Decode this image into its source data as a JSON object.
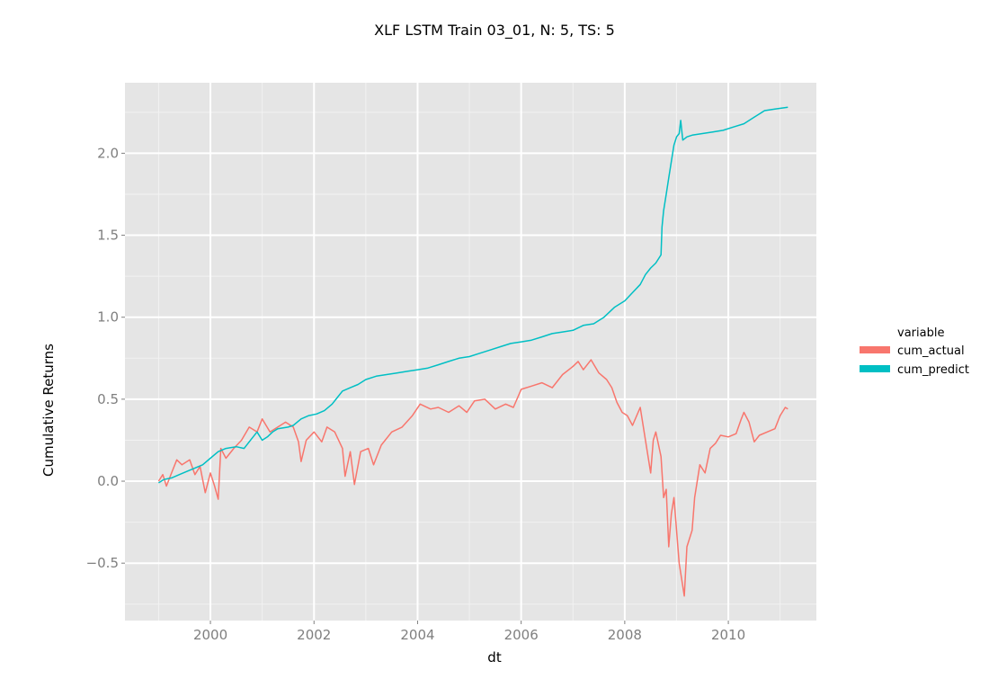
{
  "chart_data": {
    "type": "line",
    "title": "XLF LSTM Train 03_01, N: 5, TS: 5",
    "xlabel": "dt",
    "ylabel": "Cumulative Returns",
    "xlim": [
      1998.35,
      2011.7
    ],
    "ylim": [
      -0.85,
      2.43
    ],
    "x_ticks": [
      2000,
      2002,
      2004,
      2006,
      2008,
      2010
    ],
    "x_tick_labels": [
      "2000",
      "2002",
      "2004",
      "2006",
      "2008",
      "2010"
    ],
    "y_ticks": [
      -0.5,
      0.0,
      0.5,
      1.0,
      1.5,
      2.0
    ],
    "y_tick_labels": [
      "−0.5",
      "0.0",
      "0.5",
      "1.0",
      "1.5",
      "2.0"
    ],
    "grid": true,
    "legend": {
      "title": "variable",
      "position": "right"
    },
    "series": [
      {
        "name": "cum_actual",
        "color": "#F8766D",
        "points": [
          [
            1999.0,
            0.0
          ],
          [
            1999.08,
            0.04
          ],
          [
            1999.15,
            -0.03
          ],
          [
            1999.25,
            0.05
          ],
          [
            1999.35,
            0.13
          ],
          [
            1999.45,
            0.1
          ],
          [
            1999.6,
            0.13
          ],
          [
            1999.7,
            0.04
          ],
          [
            1999.8,
            0.09
          ],
          [
            1999.9,
            -0.07
          ],
          [
            2000.0,
            0.05
          ],
          [
            2000.08,
            -0.03
          ],
          [
            2000.15,
            -0.11
          ],
          [
            2000.2,
            0.2
          ],
          [
            2000.3,
            0.14
          ],
          [
            2000.45,
            0.2
          ],
          [
            2000.6,
            0.25
          ],
          [
            2000.75,
            0.33
          ],
          [
            2000.9,
            0.3
          ],
          [
            2001.0,
            0.38
          ],
          [
            2001.15,
            0.3
          ],
          [
            2001.3,
            0.33
          ],
          [
            2001.45,
            0.36
          ],
          [
            2001.6,
            0.33
          ],
          [
            2001.7,
            0.24
          ],
          [
            2001.75,
            0.12
          ],
          [
            2001.85,
            0.25
          ],
          [
            2002.0,
            0.3
          ],
          [
            2002.15,
            0.24
          ],
          [
            2002.25,
            0.33
          ],
          [
            2002.4,
            0.3
          ],
          [
            2002.55,
            0.2
          ],
          [
            2002.6,
            0.03
          ],
          [
            2002.7,
            0.18
          ],
          [
            2002.78,
            -0.02
          ],
          [
            2002.9,
            0.18
          ],
          [
            2003.05,
            0.2
          ],
          [
            2003.15,
            0.1
          ],
          [
            2003.3,
            0.22
          ],
          [
            2003.5,
            0.3
          ],
          [
            2003.7,
            0.33
          ],
          [
            2003.9,
            0.4
          ],
          [
            2004.05,
            0.47
          ],
          [
            2004.25,
            0.44
          ],
          [
            2004.4,
            0.45
          ],
          [
            2004.6,
            0.42
          ],
          [
            2004.8,
            0.46
          ],
          [
            2004.95,
            0.42
          ],
          [
            2005.1,
            0.49
          ],
          [
            2005.3,
            0.5
          ],
          [
            2005.5,
            0.44
          ],
          [
            2005.7,
            0.47
          ],
          [
            2005.85,
            0.45
          ],
          [
            2006.0,
            0.56
          ],
          [
            2006.2,
            0.58
          ],
          [
            2006.4,
            0.6
          ],
          [
            2006.6,
            0.57
          ],
          [
            2006.8,
            0.65
          ],
          [
            2007.0,
            0.7
          ],
          [
            2007.1,
            0.73
          ],
          [
            2007.2,
            0.68
          ],
          [
            2007.35,
            0.74
          ],
          [
            2007.5,
            0.66
          ],
          [
            2007.65,
            0.62
          ],
          [
            2007.75,
            0.57
          ],
          [
            2007.85,
            0.48
          ],
          [
            2007.95,
            0.42
          ],
          [
            2008.05,
            0.4
          ],
          [
            2008.15,
            0.34
          ],
          [
            2008.3,
            0.45
          ],
          [
            2008.4,
            0.25
          ],
          [
            2008.5,
            0.05
          ],
          [
            2008.55,
            0.25
          ],
          [
            2008.6,
            0.3
          ],
          [
            2008.7,
            0.15
          ],
          [
            2008.75,
            -0.1
          ],
          [
            2008.8,
            -0.05
          ],
          [
            2008.85,
            -0.4
          ],
          [
            2008.9,
            -0.2
          ],
          [
            2008.95,
            -0.1
          ],
          [
            2009.05,
            -0.5
          ],
          [
            2009.15,
            -0.7
          ],
          [
            2009.2,
            -0.4
          ],
          [
            2009.3,
            -0.3
          ],
          [
            2009.35,
            -0.1
          ],
          [
            2009.45,
            0.1
          ],
          [
            2009.55,
            0.05
          ],
          [
            2009.65,
            0.2
          ],
          [
            2009.75,
            0.23
          ],
          [
            2009.85,
            0.28
          ],
          [
            2010.0,
            0.27
          ],
          [
            2010.15,
            0.29
          ],
          [
            2010.25,
            0.38
          ],
          [
            2010.3,
            0.42
          ],
          [
            2010.4,
            0.36
          ],
          [
            2010.5,
            0.24
          ],
          [
            2010.6,
            0.28
          ],
          [
            2010.75,
            0.3
          ],
          [
            2010.9,
            0.32
          ],
          [
            2011.0,
            0.4
          ],
          [
            2011.1,
            0.45
          ],
          [
            2011.15,
            0.44
          ]
        ]
      },
      {
        "name": "cum_predict",
        "color": "#00BFC4",
        "points": [
          [
            1999.0,
            -0.01
          ],
          [
            1999.1,
            0.01
          ],
          [
            1999.25,
            0.02
          ],
          [
            1999.4,
            0.04
          ],
          [
            1999.55,
            0.06
          ],
          [
            1999.7,
            0.08
          ],
          [
            1999.85,
            0.1
          ],
          [
            2000.0,
            0.14
          ],
          [
            2000.15,
            0.18
          ],
          [
            2000.3,
            0.2
          ],
          [
            2000.5,
            0.21
          ],
          [
            2000.65,
            0.2
          ],
          [
            2000.8,
            0.26
          ],
          [
            2000.9,
            0.3
          ],
          [
            2001.0,
            0.25
          ],
          [
            2001.1,
            0.27
          ],
          [
            2001.2,
            0.3
          ],
          [
            2001.3,
            0.32
          ],
          [
            2001.5,
            0.33
          ],
          [
            2001.6,
            0.34
          ],
          [
            2001.75,
            0.38
          ],
          [
            2001.9,
            0.4
          ],
          [
            2002.05,
            0.41
          ],
          [
            2002.2,
            0.43
          ],
          [
            2002.35,
            0.47
          ],
          [
            2002.45,
            0.51
          ],
          [
            2002.55,
            0.55
          ],
          [
            2002.7,
            0.57
          ],
          [
            2002.85,
            0.59
          ],
          [
            2003.0,
            0.62
          ],
          [
            2003.2,
            0.64
          ],
          [
            2003.4,
            0.65
          ],
          [
            2003.6,
            0.66
          ],
          [
            2003.8,
            0.67
          ],
          [
            2004.0,
            0.68
          ],
          [
            2004.2,
            0.69
          ],
          [
            2004.4,
            0.71
          ],
          [
            2004.6,
            0.73
          ],
          [
            2004.8,
            0.75
          ],
          [
            2005.0,
            0.76
          ],
          [
            2005.2,
            0.78
          ],
          [
            2005.4,
            0.8
          ],
          [
            2005.6,
            0.82
          ],
          [
            2005.8,
            0.84
          ],
          [
            2006.0,
            0.85
          ],
          [
            2006.2,
            0.86
          ],
          [
            2006.4,
            0.88
          ],
          [
            2006.6,
            0.9
          ],
          [
            2006.8,
            0.91
          ],
          [
            2007.0,
            0.92
          ],
          [
            2007.2,
            0.95
          ],
          [
            2007.4,
            0.96
          ],
          [
            2007.6,
            1.0
          ],
          [
            2007.8,
            1.06
          ],
          [
            2008.0,
            1.1
          ],
          [
            2008.15,
            1.15
          ],
          [
            2008.3,
            1.2
          ],
          [
            2008.4,
            1.26
          ],
          [
            2008.5,
            1.3
          ],
          [
            2008.6,
            1.33
          ],
          [
            2008.7,
            1.38
          ],
          [
            2008.72,
            1.55
          ],
          [
            2008.75,
            1.65
          ],
          [
            2008.8,
            1.75
          ],
          [
            2008.85,
            1.85
          ],
          [
            2008.9,
            1.95
          ],
          [
            2008.95,
            2.05
          ],
          [
            2009.0,
            2.1
          ],
          [
            2009.05,
            2.12
          ],
          [
            2009.08,
            2.2
          ],
          [
            2009.12,
            2.08
          ],
          [
            2009.2,
            2.1
          ],
          [
            2009.3,
            2.11
          ],
          [
            2009.5,
            2.12
          ],
          [
            2009.7,
            2.13
          ],
          [
            2009.9,
            2.14
          ],
          [
            2010.1,
            2.16
          ],
          [
            2010.3,
            2.18
          ],
          [
            2010.5,
            2.22
          ],
          [
            2010.7,
            2.26
          ],
          [
            2010.9,
            2.27
          ],
          [
            2011.15,
            2.28
          ]
        ]
      }
    ]
  }
}
